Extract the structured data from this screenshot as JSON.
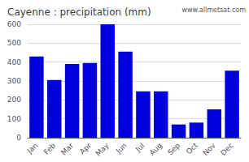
{
  "chart_data": {
    "type": "bar",
    "title": "Cayenne : precipitation (mm)",
    "categories": [
      "Jan",
      "Feb",
      "Mar",
      "Apr",
      "May",
      "Jun",
      "Jul",
      "Aug",
      "Sep",
      "Oct",
      "Nov",
      "Dec"
    ],
    "values": [
      430,
      305,
      390,
      395,
      600,
      455,
      245,
      245,
      70,
      80,
      150,
      355
    ],
    "color": "#0000dd",
    "ylim": [
      0,
      600
    ],
    "yticks": [
      0,
      100,
      200,
      300,
      400,
      500,
      600
    ],
    "grid": true,
    "annotations": [
      "www.allmetsat.com"
    ]
  }
}
